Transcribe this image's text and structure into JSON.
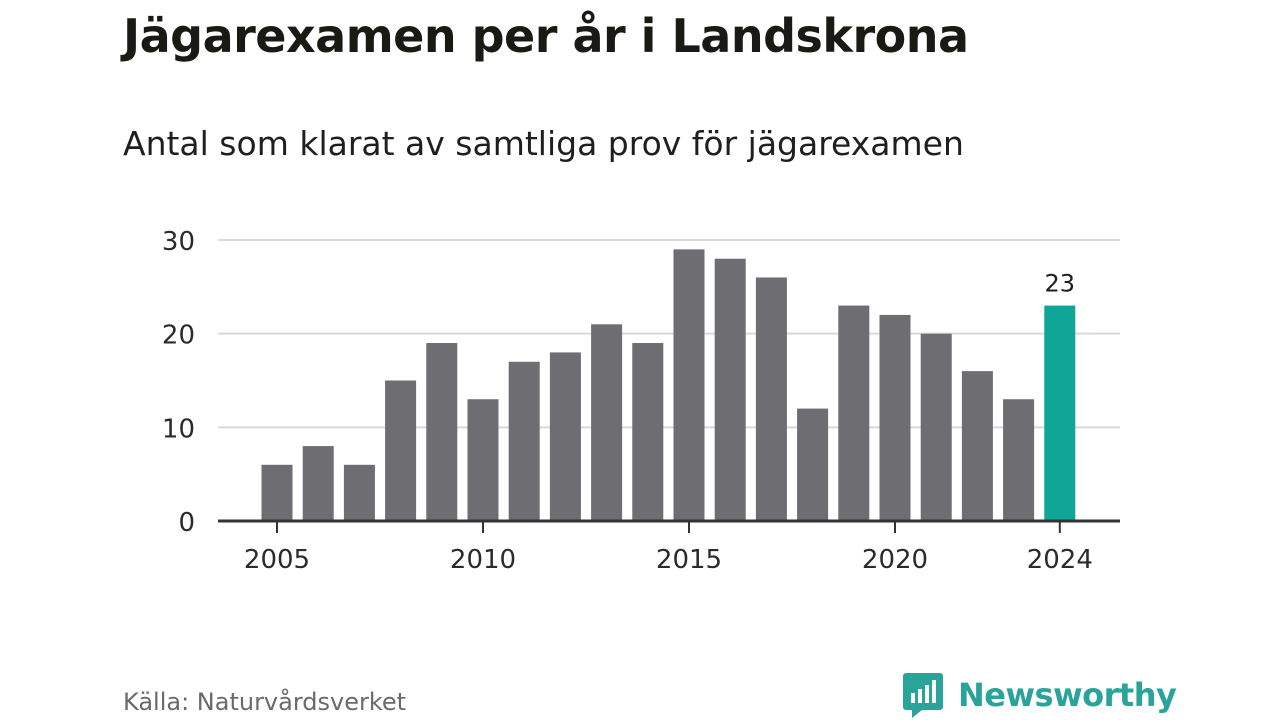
{
  "title": "Jägarexamen per år i Landskrona",
  "subtitle": "Antal som klarat av samtliga prov för jägarexamen",
  "source": "Källa: Naturvårdsverket",
  "brand": {
    "name": "Newsworthy",
    "icon": "newsworthy-logo-icon"
  },
  "colors": {
    "bar": "#6e6d72",
    "highlight": "#0fa697",
    "grid": "#d9d9d9",
    "axis": "#333333",
    "brand": "#2aa39a"
  },
  "chart_data": {
    "type": "bar",
    "x": [
      2005,
      2006,
      2007,
      2008,
      2009,
      2010,
      2011,
      2012,
      2013,
      2014,
      2015,
      2016,
      2017,
      2018,
      2019,
      2020,
      2021,
      2022,
      2023,
      2024
    ],
    "values": [
      6,
      8,
      6,
      15,
      19,
      13,
      17,
      18,
      21,
      19,
      29,
      28,
      26,
      12,
      23,
      22,
      20,
      16,
      13,
      23
    ],
    "highlight_x": 2024,
    "data_labels": [
      {
        "x": 2024,
        "label": "23"
      }
    ],
    "xticks": [
      "2005",
      "2010",
      "2015",
      "2020",
      "2024"
    ],
    "yticks": [
      "0",
      "10",
      "20",
      "30"
    ],
    "ylim": [
      0,
      30
    ],
    "grid": true,
    "legend": false
  }
}
